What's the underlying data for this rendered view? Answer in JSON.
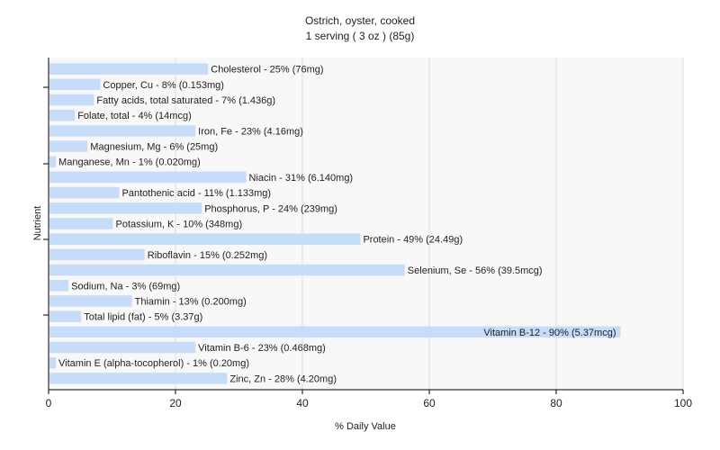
{
  "chart_data": {
    "type": "bar",
    "orientation": "horizontal",
    "title": "Ostrich, oyster, cooked",
    "subtitle": "1 serving ( 3 oz ) (85g)",
    "xlabel": "% Daily Value",
    "ylabel": "Nutrient",
    "xlim": [
      0,
      100
    ],
    "xticks": [
      0,
      20,
      40,
      60,
      80,
      100
    ],
    "grid": true,
    "colors": {
      "bar": "#c6dcf8",
      "grid": "#dddddd",
      "axis": "#000000",
      "plot_bg": "#f8f8f8"
    },
    "categories": [
      "Cholesterol",
      "Copper, Cu",
      "Fatty acids, total saturated",
      "Folate, total",
      "Iron, Fe",
      "Magnesium, Mg",
      "Manganese, Mn",
      "Niacin",
      "Pantothenic acid",
      "Phosphorus, P",
      "Potassium, K",
      "Protein",
      "Riboflavin",
      "Selenium, Se",
      "Sodium, Na",
      "Thiamin",
      "Total lipid (fat)",
      "Vitamin B-12",
      "Vitamin B-6",
      "Vitamin E (alpha-tocopherol)",
      "Zinc, Zn"
    ],
    "values": [
      25,
      8,
      7,
      4,
      23,
      6,
      1,
      31,
      11,
      24,
      10,
      49,
      15,
      56,
      3,
      13,
      5,
      90,
      23,
      1,
      28
    ],
    "labels": [
      "Cholesterol - 25% (76mg)",
      "Copper, Cu - 8% (0.153mg)",
      "Fatty acids, total saturated - 7% (1.436g)",
      "Folate, total - 4% (14mcg)",
      "Iron, Fe - 23% (4.16mg)",
      "Magnesium, Mg - 6% (25mg)",
      "Manganese, Mn - 1% (0.020mg)",
      "Niacin - 31% (6.140mg)",
      "Pantothenic acid - 11% (1.133mg)",
      "Phosphorus, P - 24% (239mg)",
      "Potassium, K - 10% (348mg)",
      "Protein - 49% (24.49g)",
      "Riboflavin - 15% (0.252mg)",
      "Selenium, Se - 56% (39.5mcg)",
      "Sodium, Na - 3% (69mg)",
      "Thiamin - 13% (0.200mg)",
      "Total lipid (fat) - 5% (3.37g)",
      "Vitamin B-12 - 90% (5.37mcg)",
      "Vitamin B-6 - 23% (0.468mg)",
      "Vitamin E (alpha-tocopherol) - 1% (0.20mg)",
      "Zinc, Zn - 28% (4.20mg)"
    ]
  }
}
